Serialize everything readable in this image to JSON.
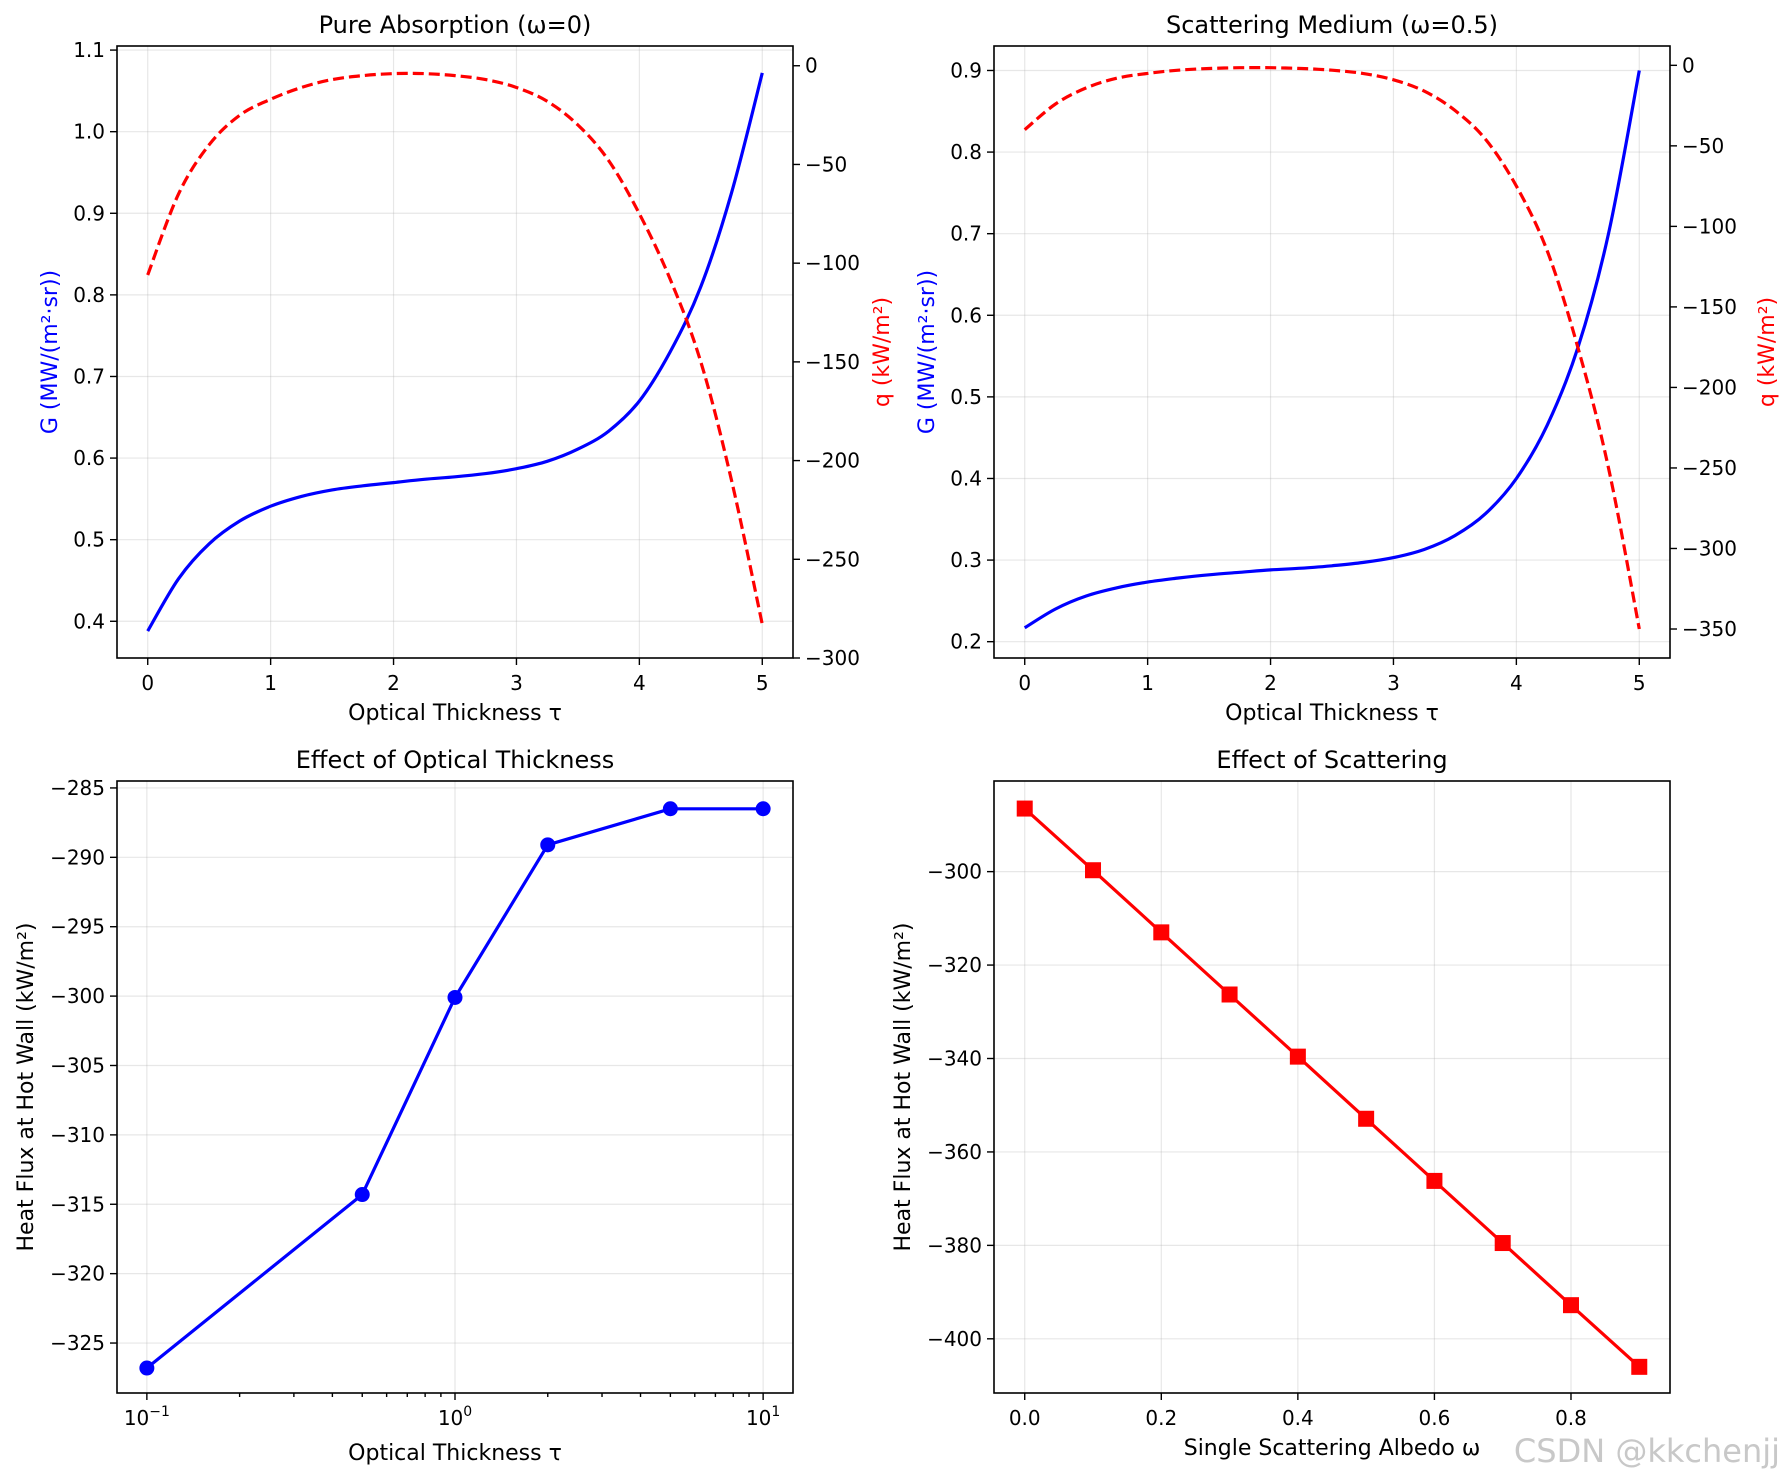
{
  "chart_data": [
    {
      "type": "line",
      "title": "Pure Absorption (ω=0)",
      "xlabel": "Optical Thickness τ",
      "ylabel": "G (MW/(m²·sr))",
      "y2label": "q (kW/m²)",
      "xlim": [
        -0.25,
        5.25
      ],
      "ylim": [
        0.355,
        1.105
      ],
      "y2lim": [
        -300,
        10
      ],
      "xticks": [
        "0",
        "1",
        "2",
        "3",
        "4",
        "5"
      ],
      "yticks": [
        "0.4",
        "0.5",
        "0.6",
        "0.7",
        "0.8",
        "0.9",
        "1.0",
        "1.1"
      ],
      "y2ticks": [
        "0",
        "−50",
        "−100",
        "−150",
        "−200",
        "−250",
        "−300"
      ],
      "series": [
        {
          "name": "G",
          "axis": "left",
          "color": "#0000ff",
          "style": "solid",
          "x": [
            0,
            0.25,
            0.5,
            0.75,
            1,
            1.25,
            1.5,
            1.75,
            2,
            2.25,
            2.5,
            2.75,
            3,
            3.25,
            3.5,
            3.75,
            4,
            4.25,
            4.5,
            4.75,
            5
          ],
          "y": [
            0.388,
            0.452,
            0.495,
            0.523,
            0.541,
            0.553,
            0.561,
            0.566,
            0.57,
            0.574,
            0.577,
            0.581,
            0.587,
            0.596,
            0.611,
            0.633,
            0.67,
            0.73,
            0.81,
            0.925,
            1.072
          ]
        },
        {
          "name": "q",
          "axis": "right",
          "color": "#ff0000",
          "style": "dashed",
          "x": [
            0,
            0.25,
            0.5,
            0.75,
            1,
            1.25,
            1.5,
            1.75,
            2,
            2.25,
            2.5,
            2.75,
            3,
            3.25,
            3.5,
            3.75,
            4,
            4.25,
            4.5,
            4.75,
            5
          ],
          "y": [
            -106,
            -65,
            -40,
            -25,
            -17,
            -11,
            -7,
            -5,
            -4,
            -4,
            -5,
            -7,
            -11,
            -18,
            -30,
            -48,
            -75,
            -108,
            -150,
            -210,
            -283
          ]
        }
      ]
    },
    {
      "type": "line",
      "title": "Scattering Medium (ω=0.5)",
      "xlabel": "Optical Thickness τ",
      "ylabel": "G (MW/(m²·sr))",
      "y2label": "q (kW/m²)",
      "xlim": [
        -0.25,
        5.25
      ],
      "ylim": [
        0.18,
        0.93
      ],
      "y2lim": [
        -368,
        12
      ],
      "xticks": [
        "0",
        "1",
        "2",
        "3",
        "4",
        "5"
      ],
      "yticks": [
        "0.2",
        "0.3",
        "0.4",
        "0.5",
        "0.6",
        "0.7",
        "0.8",
        "0.9"
      ],
      "y2ticks": [
        "0",
        "−50",
        "−100",
        "−150",
        "−200",
        "−250",
        "−300",
        "−350"
      ],
      "series": [
        {
          "name": "G",
          "axis": "left",
          "color": "#0000ff",
          "style": "solid",
          "x": [
            0,
            0.25,
            0.5,
            0.75,
            1,
            1.25,
            1.5,
            1.75,
            2,
            2.25,
            2.5,
            2.75,
            3,
            3.25,
            3.5,
            3.75,
            4,
            4.25,
            4.5,
            4.75,
            5
          ],
          "y": [
            0.217,
            0.24,
            0.256,
            0.266,
            0.273,
            0.278,
            0.282,
            0.285,
            0.288,
            0.29,
            0.293,
            0.297,
            0.303,
            0.313,
            0.33,
            0.357,
            0.4,
            0.465,
            0.56,
            0.7,
            0.9
          ]
        },
        {
          "name": "q",
          "axis": "right",
          "color": "#ff0000",
          "style": "dashed",
          "x": [
            0,
            0.25,
            0.5,
            0.75,
            1,
            1.25,
            1.5,
            1.75,
            2,
            2.25,
            2.5,
            2.75,
            3,
            3.25,
            3.5,
            3.75,
            4,
            4.25,
            4.5,
            4.75,
            5
          ],
          "y": [
            -40,
            -24,
            -14,
            -8,
            -5,
            -3,
            -2,
            -1.5,
            -1.5,
            -2,
            -3,
            -5,
            -9,
            -16,
            -28,
            -46,
            -75,
            -115,
            -175,
            -250,
            -350
          ]
        }
      ]
    },
    {
      "type": "line",
      "title": "Effect of Optical Thickness",
      "xlabel": "Optical Thickness τ",
      "ylabel": "Heat Flux at Hot Wall (kW/m²)",
      "xscale": "log",
      "xlim": [
        0.08,
        12.5
      ],
      "ylim": [
        -328.6,
        -284.5
      ],
      "xticks": [
        "10",
        "10",
        "10"
      ],
      "xtick_exponents": [
        "−1",
        "0",
        "1"
      ],
      "yticks": [
        "−285",
        "−290",
        "−295",
        "−300",
        "−305",
        "−310",
        "−315",
        "−320",
        "−325"
      ],
      "series": [
        {
          "name": "heat flux",
          "color": "#0000ff",
          "marker": "circle",
          "x": [
            0.1,
            0.5,
            1,
            2,
            5,
            10
          ],
          "y": [
            -326.8,
            -314.3,
            -300.1,
            -289.1,
            -286.5,
            -286.5
          ]
        }
      ]
    },
    {
      "type": "line",
      "title": "Effect of Scattering",
      "xlabel": "Single Scattering Albedo ω",
      "ylabel": "Heat Flux at Hot Wall (kW/m²)",
      "xlim": [
        -0.045,
        0.945
      ],
      "ylim": [
        -411.6,
        -280.6
      ],
      "xticks": [
        "0.0",
        "0.2",
        "0.4",
        "0.6",
        "0.8"
      ],
      "yticks": [
        "−300",
        "−320",
        "−340",
        "−360",
        "−380",
        "−400"
      ],
      "series": [
        {
          "name": "heat flux",
          "color": "#ff0000",
          "marker": "square",
          "x": [
            0,
            0.1,
            0.2,
            0.3,
            0.4,
            0.5,
            0.6,
            0.7,
            0.8,
            0.9
          ],
          "y": [
            -286.5,
            -299.7,
            -313,
            -326.3,
            -339.6,
            -352.9,
            -366.2,
            -379.5,
            -392.8,
            -406
          ]
        }
      ]
    }
  ],
  "watermark": "CSDN @kkchenjj"
}
